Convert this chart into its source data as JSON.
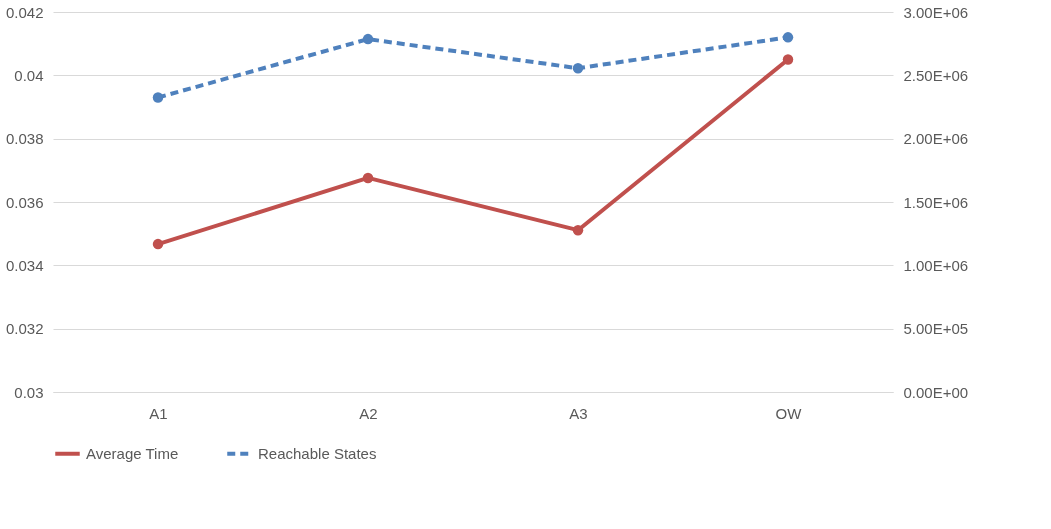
{
  "chart_data": {
    "type": "line",
    "categories": [
      "A1",
      "A2",
      "A3",
      "OW"
    ],
    "series": [
      {
        "name": "Average Time",
        "color": "#c0504d",
        "values": [
          0.03467,
          0.03676,
          0.03511,
          0.0405
        ],
        "marker": "circle",
        "line_style": "solid"
      },
      {
        "name": "Reachable States",
        "color": "#4f81bd",
        "values": [
          2325000,
          2786000,
          2556000,
          2800000
        ],
        "axis": "y2",
        "marker": "circle",
        "line_style": "dashed"
      }
    ],
    "ylim": [
      0.03,
      0.042
    ],
    "yticks": [
      0.03,
      0.032,
      0.034,
      0.036,
      0.038,
      0.04,
      0.042
    ],
    "y2lim": [
      0,
      3000000
    ],
    "y2ticks": [
      {
        "value": 0,
        "label": "0.00E+00"
      },
      {
        "value": 500000,
        "label": "5.00E+05"
      },
      {
        "value": 1000000,
        "label": "1.00E+06"
      },
      {
        "value": 1500000,
        "label": "1.50E+06"
      },
      {
        "value": 2000000,
        "label": "2.00E+06"
      },
      {
        "value": 2500000,
        "label": "2.50E+06"
      },
      {
        "value": 3000000,
        "label": "3.00E+06"
      }
    ],
    "grid": "y",
    "legend": "bottom"
  }
}
